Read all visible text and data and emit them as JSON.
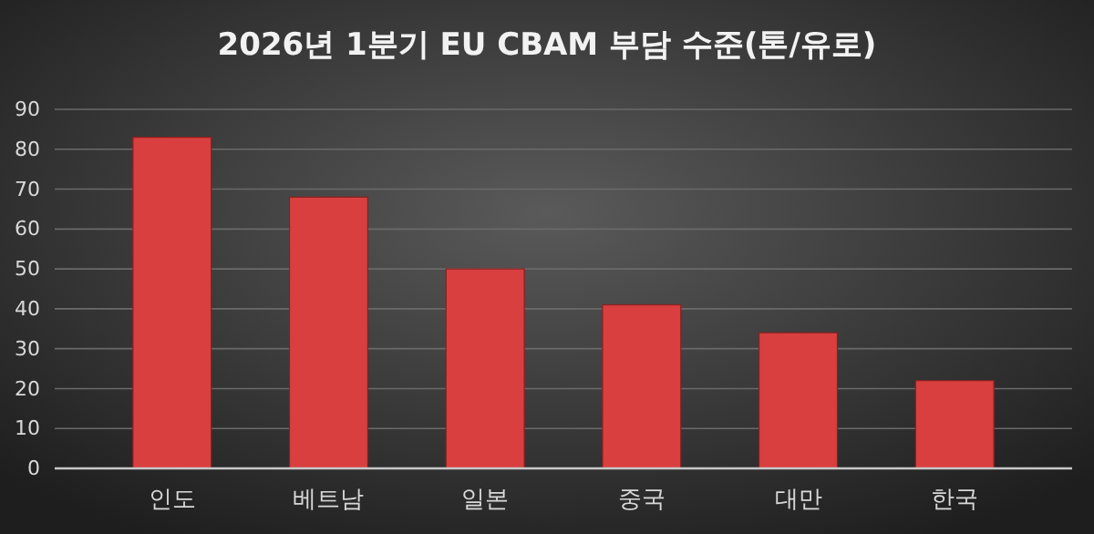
{
  "chart_data": {
    "type": "bar",
    "title": "2026년 1분기 EU CBAM 부담 수준(톤/유로)",
    "categories": [
      "인도",
      "베트남",
      "일본",
      "중국",
      "대만",
      "한국"
    ],
    "values": [
      83,
      68,
      50,
      41,
      34,
      22
    ],
    "color": "#d93f3f",
    "ylim": [
      0,
      90
    ],
    "yticks": [
      0,
      10,
      20,
      30,
      40,
      50,
      60,
      70,
      80,
      90
    ],
    "grid": "y"
  }
}
